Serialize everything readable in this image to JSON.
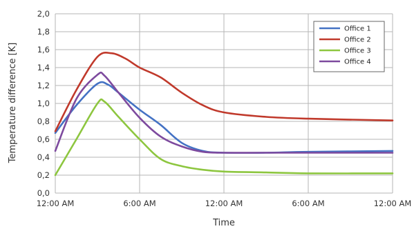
{
  "chart_data": {
    "type": "line",
    "xlabel": "Time",
    "ylabel": "Temperature difference [K]",
    "x_ticks": [
      "12:00 AM",
      "6:00 AM",
      "12:00 AM",
      "6:00 AM",
      "12:00 AM"
    ],
    "x_range_hours": [
      0,
      48
    ],
    "ylim": [
      0,
      2
    ],
    "y_ticks": [
      "0,0",
      "0,2",
      "0,4",
      "0,6",
      "0,8",
      "1,0",
      "1,2",
      "1,4",
      "1,6",
      "1,8",
      "2,0"
    ],
    "grid": true,
    "legend_position": "top-right",
    "series": [
      {
        "name": "Office 1",
        "color": "#4472c4",
        "points": [
          [
            0,
            0.67
          ],
          [
            3,
            0.98
          ],
          [
            6,
            1.22
          ],
          [
            7.5,
            1.21
          ],
          [
            9,
            1.12
          ],
          [
            12,
            0.93
          ],
          [
            15,
            0.76
          ],
          [
            18,
            0.56
          ],
          [
            21,
            0.47
          ],
          [
            24,
            0.45
          ],
          [
            30,
            0.45
          ],
          [
            36,
            0.46
          ],
          [
            48,
            0.47
          ]
        ]
      },
      {
        "name": "Office 2",
        "color": "#c0392b",
        "points": [
          [
            0,
            0.69
          ],
          [
            3,
            1.15
          ],
          [
            6,
            1.52
          ],
          [
            8,
            1.56
          ],
          [
            10,
            1.5
          ],
          [
            12,
            1.4
          ],
          [
            15,
            1.29
          ],
          [
            18,
            1.12
          ],
          [
            21,
            0.98
          ],
          [
            24,
            0.9
          ],
          [
            30,
            0.85
          ],
          [
            36,
            0.83
          ],
          [
            48,
            0.81
          ]
        ]
      },
      {
        "name": "Office 3",
        "color": "#8dc63f",
        "points": [
          [
            0,
            0.2
          ],
          [
            3,
            0.6
          ],
          [
            6,
            1.0
          ],
          [
            7,
            1.02
          ],
          [
            9,
            0.85
          ],
          [
            12,
            0.6
          ],
          [
            15,
            0.38
          ],
          [
            18,
            0.3
          ],
          [
            21,
            0.26
          ],
          [
            24,
            0.24
          ],
          [
            30,
            0.23
          ],
          [
            36,
            0.22
          ],
          [
            48,
            0.22
          ]
        ]
      },
      {
        "name": "Office 4",
        "color": "#7d4a9e",
        "points": [
          [
            0,
            0.47
          ],
          [
            3,
            1.05
          ],
          [
            6,
            1.32
          ],
          [
            7,
            1.31
          ],
          [
            9,
            1.12
          ],
          [
            12,
            0.84
          ],
          [
            15,
            0.63
          ],
          [
            18,
            0.52
          ],
          [
            21,
            0.46
          ],
          [
            24,
            0.45
          ],
          [
            30,
            0.45
          ],
          [
            36,
            0.45
          ],
          [
            48,
            0.45
          ]
        ]
      }
    ]
  }
}
